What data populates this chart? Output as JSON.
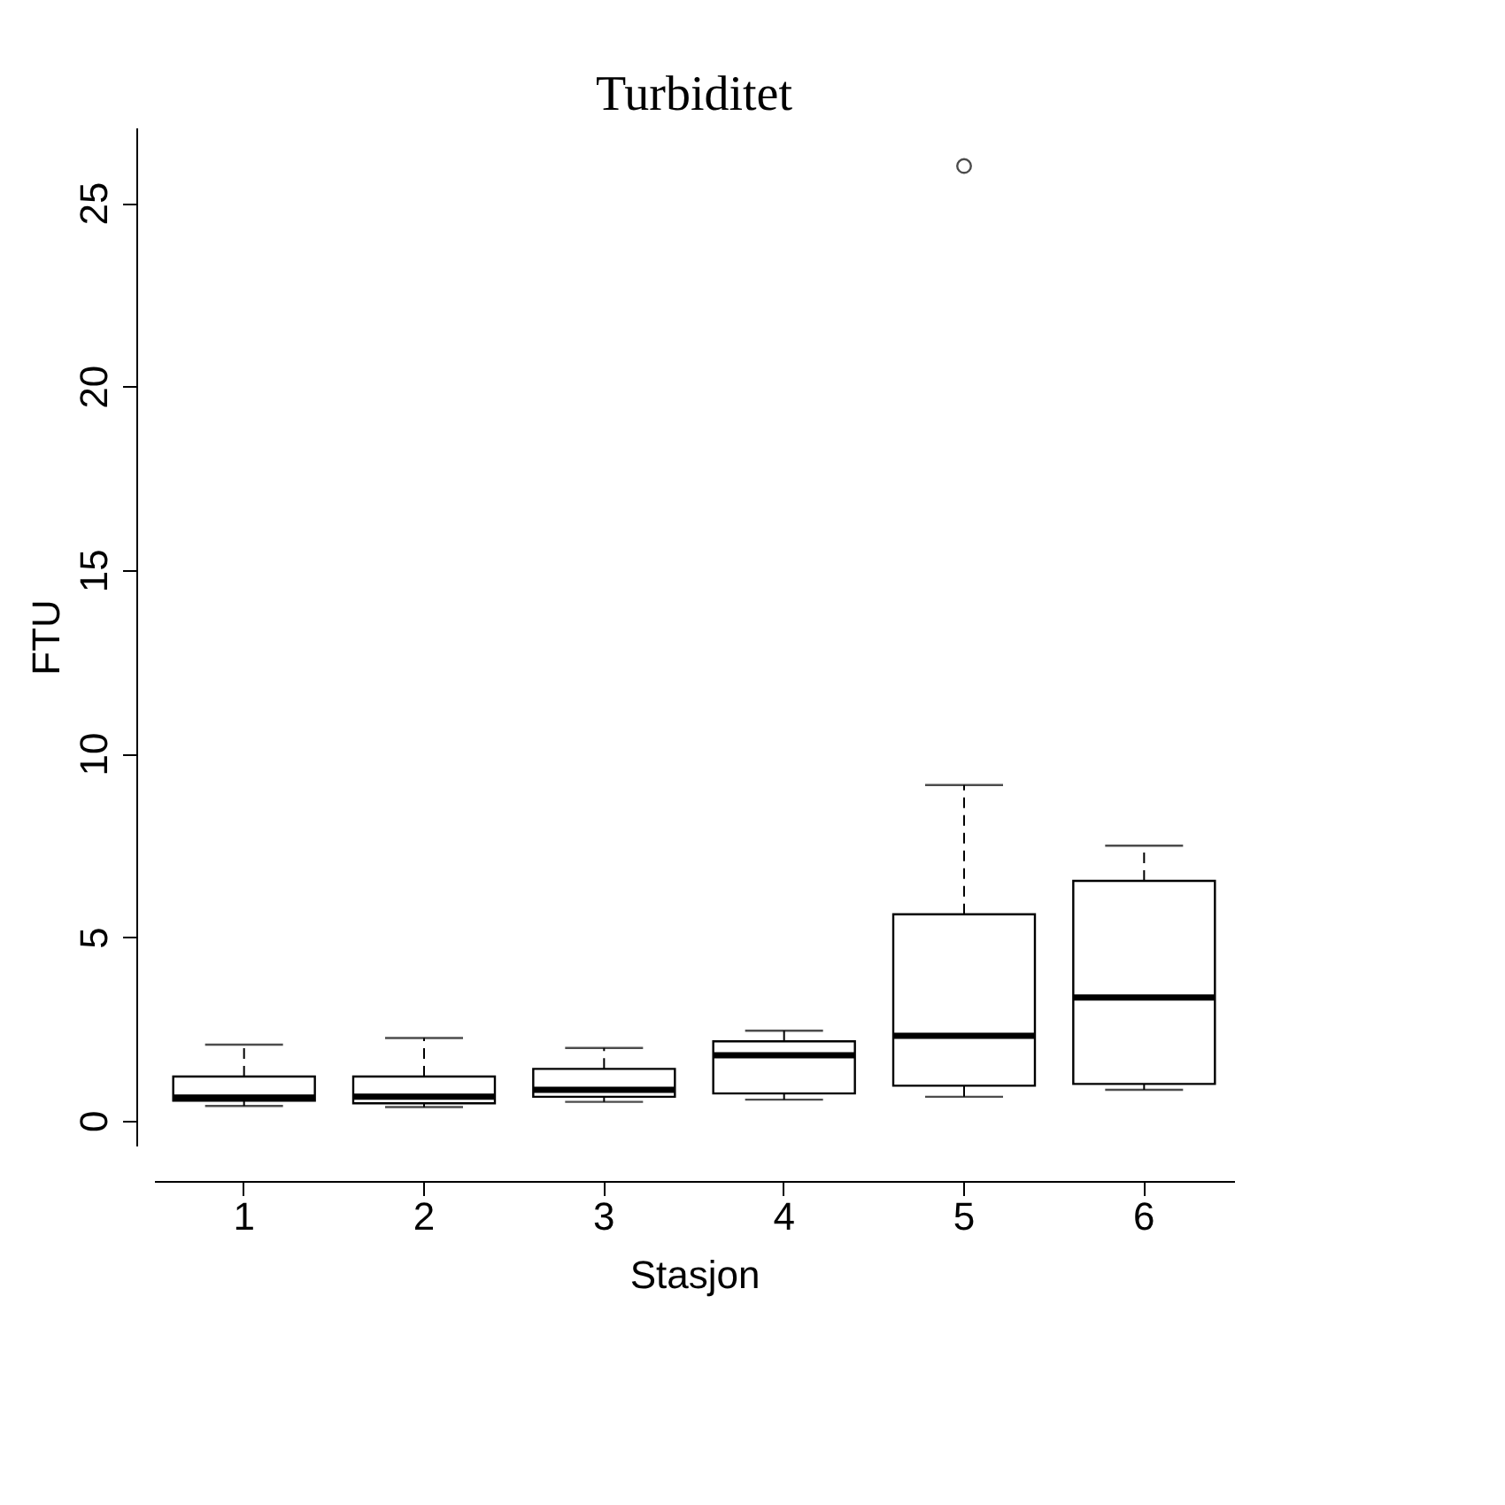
{
  "chart_data": {
    "type": "box",
    "title": "Turbiditet",
    "xlabel": "Stasjon",
    "ylabel": "FTU",
    "categories": [
      "1",
      "2",
      "3",
      "4",
      "5",
      "6"
    ],
    "boxes": [
      {
        "low": 0.4,
        "q1": 0.54,
        "median": 0.63,
        "q3": 1.2,
        "high": 2.07
      },
      {
        "low": 0.37,
        "q1": 0.47,
        "median": 0.65,
        "q3": 1.2,
        "high": 2.25
      },
      {
        "low": 0.51,
        "q1": 0.65,
        "median": 0.84,
        "q3": 1.41,
        "high": 1.98
      },
      {
        "low": 0.57,
        "q1": 0.74,
        "median": 1.78,
        "q3": 2.16,
        "high": 2.45
      },
      {
        "low": 0.65,
        "q1": 0.95,
        "median": 2.31,
        "q3": 5.62,
        "high": 9.14,
        "outliers": [
          26.0
        ]
      },
      {
        "low": 0.84,
        "q1": 1.0,
        "median": 3.35,
        "q3": 6.53,
        "high": 7.49
      }
    ],
    "ylim": [
      -0.68,
      27.05
    ],
    "yticks": [
      0,
      5,
      10,
      15,
      20,
      25
    ],
    "grid": false
  }
}
